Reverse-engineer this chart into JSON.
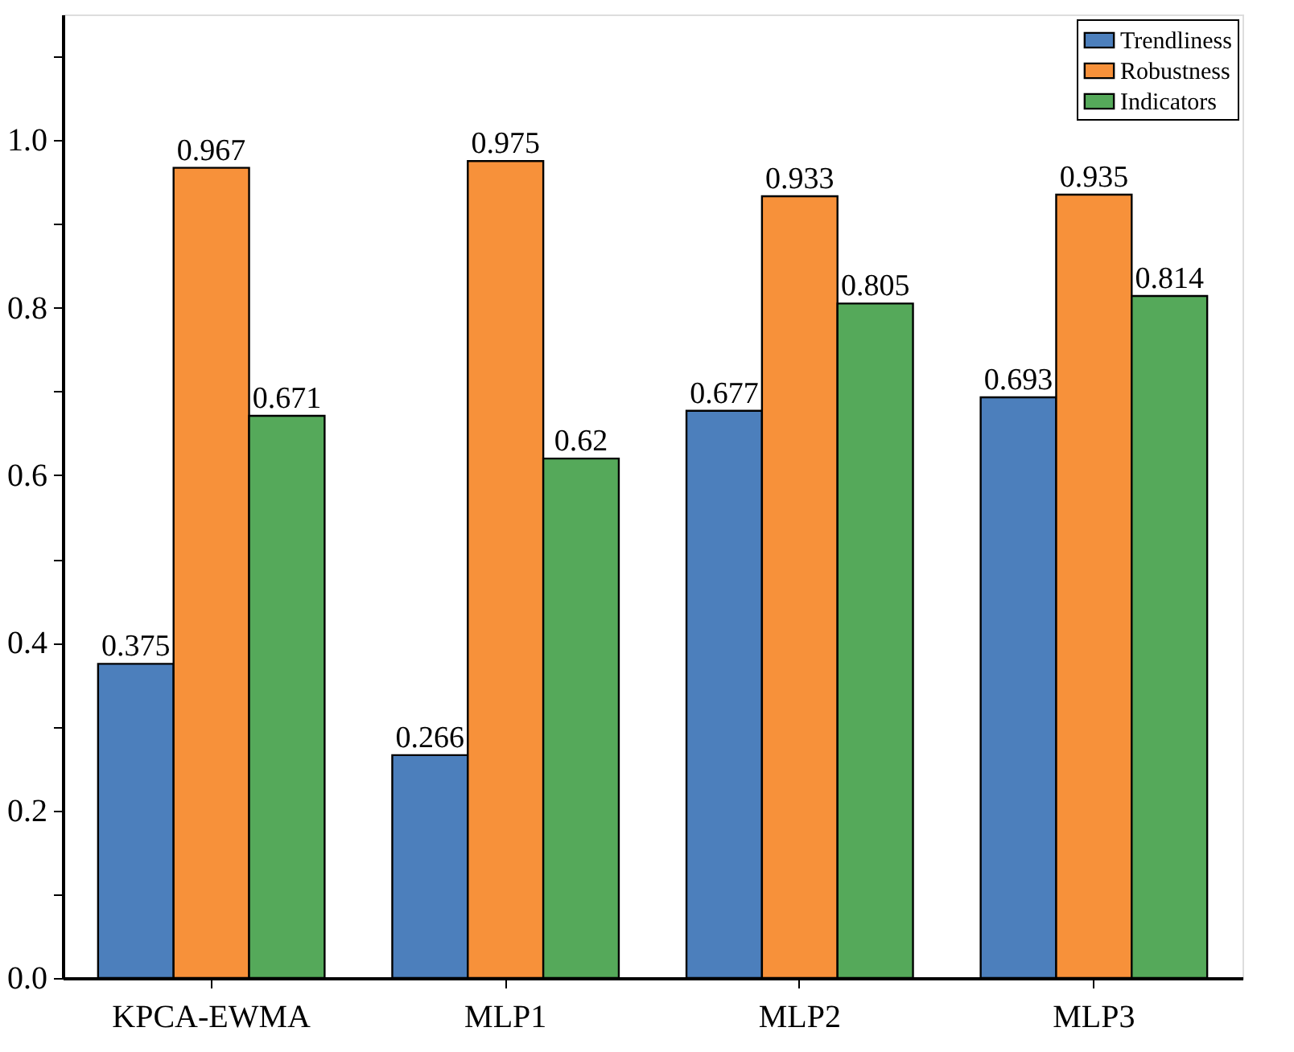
{
  "chart_data": {
    "type": "bar",
    "categories": [
      "KPCA-EWMA",
      "MLP1",
      "MLP2",
      "MLP3"
    ],
    "series": [
      {
        "name": "Trendliness",
        "color": "#4c7fbc",
        "values": [
          0.375,
          0.266,
          0.677,
          0.693
        ]
      },
      {
        "name": "Robustness",
        "color": "#f7913a",
        "values": [
          0.967,
          0.975,
          0.933,
          0.935
        ]
      },
      {
        "name": "Indicators",
        "color": "#55a95a",
        "values": [
          0.671,
          0.62,
          0.805,
          0.814
        ]
      }
    ],
    "ylim": [
      0,
      1.15
    ],
    "yticks": [
      {
        "value": 0,
        "label": "0.0"
      },
      {
        "value": 0.1,
        "label": null
      },
      {
        "value": 0.2,
        "label": "0.2"
      },
      {
        "value": 0.3,
        "label": null
      },
      {
        "value": 0.4,
        "label": "0.4"
      },
      {
        "value": 0.5,
        "label": null
      },
      {
        "value": 0.6,
        "label": "0.6"
      },
      {
        "value": 0.7,
        "label": null
      },
      {
        "value": 0.8,
        "label": "0.8"
      },
      {
        "value": 0.9,
        "label": null
      },
      {
        "value": 1.0,
        "label": "1.0"
      },
      {
        "value": 1.1,
        "label": null
      }
    ],
    "data_labels": true,
    "legend": "top right",
    "grid": false
  }
}
